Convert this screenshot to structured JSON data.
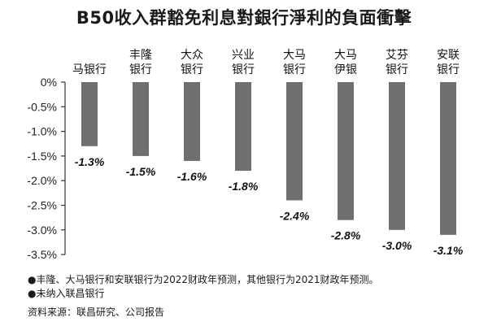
{
  "title": "B50收入群豁免利息對銀行淨利的負面衝擊",
  "notes": [
    "●丰隆、大马银行和安联银行为2022财政年预测，其他银行为2021财政年预测。",
    "●未纳入联昌银行"
  ],
  "source": "资料来源：联昌研究、公司报告",
  "colors": {
    "bar": "#6f6f6f",
    "axis": "#333333",
    "text": "#111111"
  },
  "chart_data": {
    "type": "bar",
    "categories": [
      [
        "马银行"
      ],
      [
        "丰隆",
        "银行"
      ],
      [
        "大众",
        "银行"
      ],
      [
        "兴业",
        "银行"
      ],
      [
        "大马",
        "银行"
      ],
      [
        "大马",
        "伊银"
      ],
      [
        "艾芬",
        "银行"
      ],
      [
        "安联",
        "银行"
      ]
    ],
    "values": [
      -1.3,
      -1.5,
      -1.6,
      -1.8,
      -2.4,
      -2.8,
      -3.0,
      -3.1
    ],
    "value_labels": [
      "-1.3%",
      "-1.5%",
      "-1.6%",
      "-1.8%",
      "-2.4%",
      "-2.8%",
      "-3.0%",
      "-3.1%"
    ],
    "y_ticks": [
      0,
      -0.5,
      -1.0,
      -1.5,
      -2.0,
      -2.5,
      -3.0,
      -3.5
    ],
    "y_tick_labels": [
      "0%",
      "-0.5%",
      "-1.0%",
      "-1.5%",
      "-2.0%",
      "-2.5%",
      "-3.0%",
      "-3.5%"
    ],
    "ylim": [
      -3.5,
      0
    ],
    "category_position": "top",
    "grid": false,
    "legend": "none"
  }
}
